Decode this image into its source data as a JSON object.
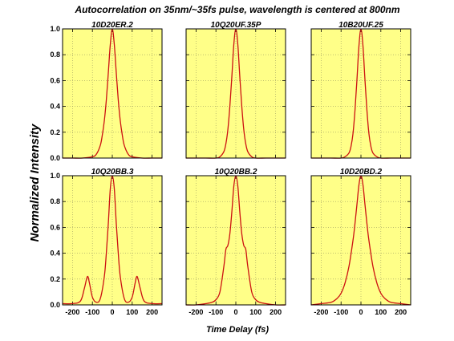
{
  "figure": {
    "title": "Autocorrelation on 35nm/~35fs pulse, wavelength is centered at 800nm",
    "ylabel": "Normalized Intensity",
    "xlabel": "Time Delay (fs)"
  },
  "colors": {
    "panel_background": "#ffff88",
    "curve": "#cc1111",
    "grid": "#9a9a60"
  },
  "chart_data": [
    {
      "type": "line",
      "title": "10D20ER.2",
      "xlim": [
        -250,
        250
      ],
      "ylim": [
        0,
        1.0
      ],
      "yticks": [
        "0.0",
        "0.2",
        "0.4",
        "0.6",
        "0.8",
        "1.0"
      ],
      "xticks": [],
      "grid": true,
      "x": [
        -250,
        -200,
        -150,
        -100,
        -80,
        -60,
        -50,
        -40,
        -30,
        -20,
        -10,
        0,
        10,
        20,
        30,
        40,
        50,
        60,
        80,
        100,
        150,
        200,
        250
      ],
      "series": [
        {
          "values": [
            0.0,
            0.0,
            0.0,
            0.01,
            0.03,
            0.1,
            0.18,
            0.29,
            0.45,
            0.66,
            0.88,
            1.0,
            0.88,
            0.66,
            0.45,
            0.29,
            0.18,
            0.1,
            0.03,
            0.01,
            0.0,
            0.0,
            0.0
          ]
        }
      ]
    },
    {
      "type": "line",
      "title": "10Q20UF.35P",
      "xlim": [
        -250,
        250
      ],
      "ylim": [
        0,
        1.0
      ],
      "yticks": [],
      "xticks": [],
      "grid": true,
      "x": [
        -250,
        -200,
        -150,
        -100,
        -80,
        -60,
        -50,
        -40,
        -30,
        -20,
        -10,
        0,
        10,
        20,
        30,
        40,
        50,
        60,
        80,
        100,
        150,
        200,
        250
      ],
      "series": [
        {
          "values": [
            0.0,
            0.0,
            0.0,
            0.0,
            0.01,
            0.05,
            0.11,
            0.22,
            0.4,
            0.63,
            0.88,
            1.0,
            0.88,
            0.63,
            0.4,
            0.22,
            0.11,
            0.05,
            0.01,
            0.0,
            0.0,
            0.0,
            0.0
          ]
        }
      ]
    },
    {
      "type": "line",
      "title": "10B20UF.25",
      "xlim": [
        -250,
        250
      ],
      "ylim": [
        0,
        1.0
      ],
      "yticks": [],
      "xticks": [],
      "grid": true,
      "x": [
        -250,
        -200,
        -150,
        -100,
        -80,
        -60,
        -50,
        -40,
        -30,
        -20,
        -10,
        0,
        10,
        20,
        30,
        40,
        50,
        60,
        80,
        100,
        150,
        200,
        250
      ],
      "series": [
        {
          "values": [
            0.0,
            0.0,
            0.0,
            0.0,
            0.01,
            0.04,
            0.09,
            0.19,
            0.37,
            0.61,
            0.87,
            1.0,
            0.87,
            0.61,
            0.37,
            0.19,
            0.09,
            0.04,
            0.01,
            0.0,
            0.0,
            0.0,
            0.0
          ]
        }
      ]
    },
    {
      "type": "line",
      "title": "10Q20BB.3",
      "xlim": [
        -250,
        250
      ],
      "ylim": [
        0,
        1.0
      ],
      "yticks": [
        "0.0",
        "0.2",
        "0.4",
        "0.6",
        "0.8",
        "1.0"
      ],
      "xticks": [
        "-200",
        "-100",
        "0",
        "100",
        "200"
      ],
      "grid": true,
      "x": [
        -250,
        -200,
        -160,
        -140,
        -125,
        -115,
        -100,
        -80,
        -60,
        -40,
        -30,
        -20,
        -10,
        0,
        10,
        20,
        30,
        40,
        60,
        80,
        100,
        115,
        125,
        140,
        160,
        200,
        250
      ],
      "series": [
        {
          "values": [
            0.01,
            0.01,
            0.03,
            0.13,
            0.22,
            0.17,
            0.06,
            0.02,
            0.05,
            0.22,
            0.4,
            0.63,
            0.9,
            1.0,
            0.9,
            0.63,
            0.4,
            0.22,
            0.05,
            0.02,
            0.06,
            0.17,
            0.22,
            0.13,
            0.03,
            0.01,
            0.01
          ]
        }
      ]
    },
    {
      "type": "line",
      "title": "10Q20BB.2",
      "xlim": [
        -250,
        250
      ],
      "ylim": [
        0,
        1.0
      ],
      "yticks": [],
      "xticks": [
        "-200",
        "-100",
        "0",
        "100",
        "200"
      ],
      "grid": true,
      "x": [
        -250,
        -200,
        -150,
        -120,
        -100,
        -80,
        -60,
        -50,
        -40,
        -30,
        -20,
        -10,
        0,
        10,
        20,
        30,
        40,
        50,
        60,
        80,
        100,
        120,
        150,
        200,
        250
      ],
      "series": [
        {
          "values": [
            0.0,
            0.0,
            0.01,
            0.02,
            0.04,
            0.1,
            0.3,
            0.43,
            0.46,
            0.55,
            0.72,
            0.92,
            1.0,
            0.92,
            0.72,
            0.55,
            0.46,
            0.43,
            0.3,
            0.1,
            0.04,
            0.02,
            0.01,
            0.0,
            0.0
          ]
        }
      ]
    },
    {
      "type": "line",
      "title": "10D20BD.2",
      "xlim": [
        -250,
        250
      ],
      "ylim": [
        0,
        1.0
      ],
      "yticks": [],
      "xticks": [
        "-200",
        "-100",
        "0",
        "100",
        "200"
      ],
      "grid": true,
      "x": [
        -250,
        -200,
        -150,
        -120,
        -100,
        -80,
        -60,
        -40,
        -30,
        -20,
        -10,
        0,
        10,
        20,
        30,
        40,
        60,
        80,
        100,
        120,
        150,
        200,
        250
      ],
      "series": [
        {
          "values": [
            0.0,
            0.01,
            0.02,
            0.05,
            0.09,
            0.17,
            0.3,
            0.5,
            0.63,
            0.78,
            0.93,
            1.0,
            0.93,
            0.78,
            0.63,
            0.5,
            0.3,
            0.17,
            0.09,
            0.05,
            0.02,
            0.01,
            0.0
          ]
        }
      ]
    }
  ]
}
